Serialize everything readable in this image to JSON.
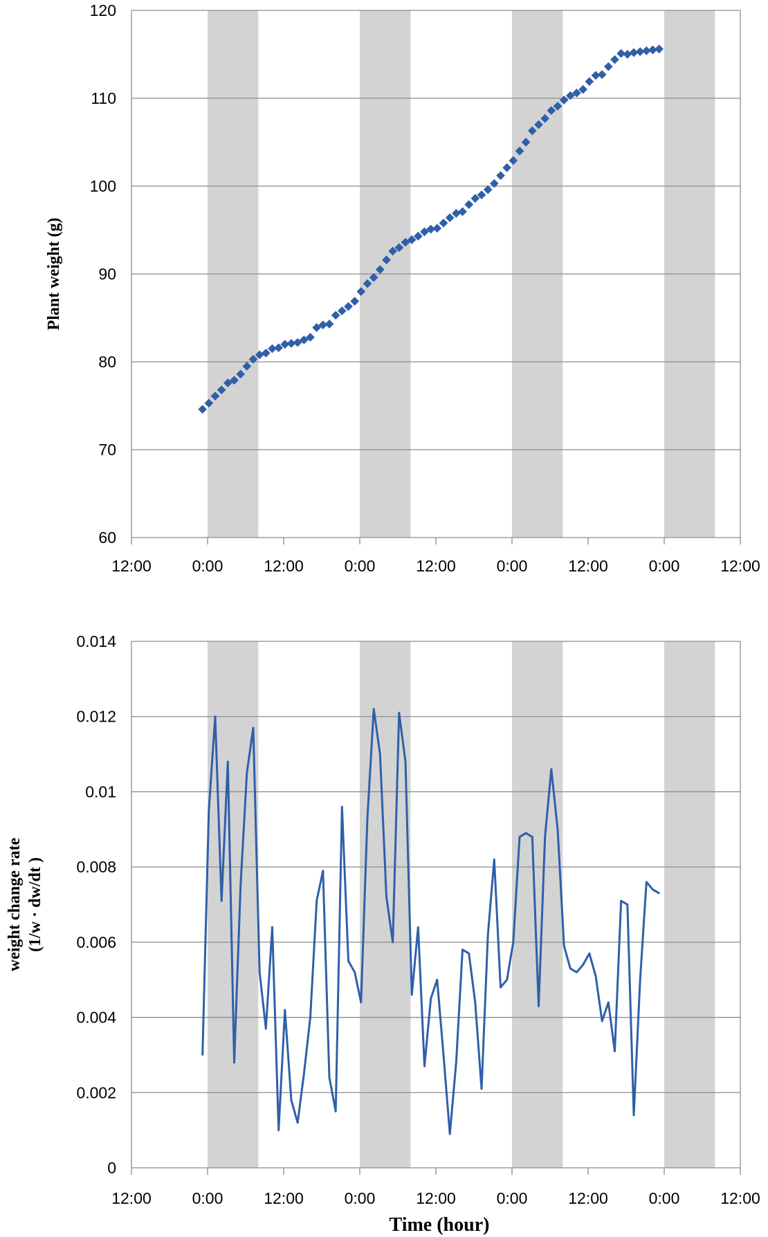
{
  "chart_data": [
    {
      "type": "scatter",
      "ylabel": "Plant weight (g)",
      "ylim": [
        60,
        120
      ],
      "yticks": [
        "60",
        "70",
        "80",
        "90",
        "100",
        "110",
        "120"
      ],
      "xlim_hours": [
        -12,
        84
      ],
      "xticks": [
        "12:00",
        "0:00",
        "12:00",
        "0:00",
        "12:00",
        "0:00",
        "12:00",
        "0:00",
        "12:00"
      ],
      "grid": true,
      "dark_periods_hours": [
        [
          0,
          8
        ],
        [
          24,
          32
        ],
        [
          48,
          56
        ],
        [
          72,
          80
        ]
      ],
      "colors": {
        "series": "#2f5fa8",
        "dark_period": "#d3d3d3",
        "grid": "#8c8c8c"
      },
      "series": [
        {
          "x_hours": [
            -0.8,
            0.2,
            1.2,
            2.2,
            3.2,
            4.2,
            5.2,
            6.2,
            7.2,
            8.2,
            9.2,
            10.2,
            11.2,
            12.2,
            13.2,
            14.2,
            15.2,
            16.2,
            17.2,
            18.2,
            19.2,
            20.2,
            21.2,
            22.2,
            23.2,
            24.2,
            25.2,
            26.2,
            27.2,
            28.2,
            29.2,
            30.2,
            31.2,
            32.2,
            33.2,
            34.2,
            35.2,
            36.2,
            37.2,
            38.2,
            39.2,
            40.2,
            41.2,
            42.2,
            43.2,
            44.2,
            45.2,
            46.2,
            47.2,
            48.2,
            49.2,
            50.2,
            51.2,
            52.2,
            53.2,
            54.2,
            55.2,
            56.2,
            57.2,
            58.2,
            59.2,
            60.2,
            61.2,
            62.2,
            63.2,
            64.2,
            65.2,
            66.2,
            67.2,
            68.2,
            69.2,
            70.2,
            71.2
          ],
          "y": [
            74.6,
            75.3,
            76.1,
            76.8,
            77.6,
            77.9,
            78.6,
            79.5,
            80.3,
            80.8,
            81.0,
            81.5,
            81.6,
            82.0,
            82.1,
            82.2,
            82.5,
            82.8,
            83.9,
            84.2,
            84.3,
            85.3,
            85.8,
            86.3,
            86.9,
            88.0,
            88.9,
            89.6,
            90.5,
            91.6,
            92.6,
            93.0,
            93.6,
            93.9,
            94.3,
            94.8,
            95.1,
            95.2,
            95.8,
            96.4,
            96.9,
            97.1,
            97.9,
            98.6,
            99.0,
            99.6,
            100.3,
            101.2,
            102.1,
            102.9,
            104.0,
            105.0,
            106.3,
            107.0,
            107.7,
            108.6,
            109.1,
            109.8,
            110.3,
            110.6,
            111.0,
            111.9,
            112.6,
            112.7,
            113.6,
            114.4,
            115.1,
            115.0,
            115.2,
            115.3,
            115.4,
            115.5,
            115.6
          ]
        }
      ]
    },
    {
      "type": "line",
      "ylabel": "weight change rate",
      "ylabel2": "(1/w · dw/dt )",
      "ylim": [
        0,
        0.014
      ],
      "yticks": [
        "0",
        "0.002",
        "0.004",
        "0.006",
        "0.008",
        "0.01",
        "0.012",
        "0.014"
      ],
      "xlim_hours": [
        -12,
        84
      ],
      "xticks": [
        "12:00",
        "0:00",
        "12:00",
        "0:00",
        "12:00",
        "0:00",
        "12:00",
        "0:00",
        "12:00"
      ],
      "xlabel": "Time (hour)",
      "grid": true,
      "dark_periods_hours": [
        [
          0,
          8
        ],
        [
          24,
          32
        ],
        [
          48,
          56
        ],
        [
          72,
          80
        ]
      ],
      "colors": {
        "series": "#2f5fa8",
        "dark_period": "#d3d3d3",
        "grid": "#8c8c8c"
      },
      "series": [
        {
          "x_hours": [
            -0.8,
            0.2,
            1.2,
            2.2,
            3.2,
            4.2,
            5.2,
            6.2,
            7.2,
            8.2,
            9.2,
            10.2,
            11.2,
            12.2,
            13.2,
            14.2,
            15.2,
            16.2,
            17.2,
            18.2,
            19.2,
            20.2,
            21.2,
            22.2,
            23.2,
            24.2,
            25.2,
            26.2,
            27.2,
            28.2,
            29.2,
            30.2,
            31.2,
            32.2,
            33.2,
            34.2,
            35.2,
            36.2,
            37.2,
            38.2,
            39.2,
            40.2,
            41.2,
            42.2,
            43.2,
            44.2,
            45.2,
            46.2,
            47.2,
            48.2,
            49.2,
            50.2,
            51.2,
            52.2,
            53.2,
            54.2,
            55.2,
            56.2,
            57.2,
            58.2,
            59.2,
            60.2,
            61.2,
            62.2,
            63.2,
            64.2,
            65.2,
            66.2,
            67.2,
            68.2,
            69.2,
            70.2,
            71.2
          ],
          "y": [
            0.003,
            0.0095,
            0.012,
            0.0071,
            0.0108,
            0.0028,
            0.0075,
            0.0105,
            0.0117,
            0.0052,
            0.0037,
            0.0064,
            0.001,
            0.0042,
            0.0018,
            0.0012,
            0.0025,
            0.004,
            0.0071,
            0.0079,
            0.0024,
            0.0015,
            0.0096,
            0.0055,
            0.0052,
            0.0044,
            0.0093,
            0.0122,
            0.011,
            0.0072,
            0.006,
            0.0121,
            0.0108,
            0.0046,
            0.0064,
            0.0027,
            0.0045,
            0.005,
            0.003,
            0.0009,
            0.0028,
            0.0058,
            0.0057,
            0.0044,
            0.0021,
            0.0062,
            0.0082,
            0.0048,
            0.005,
            0.006,
            0.0088,
            0.0089,
            0.0088,
            0.0043,
            0.0088,
            0.0106,
            0.009,
            0.0059,
            0.0053,
            0.0052,
            0.0054,
            0.0057,
            0.0051,
            0.0039,
            0.0044,
            0.0031,
            0.0071,
            0.007,
            0.0014,
            0.005,
            0.0076,
            0.0074,
            0.0073
          ]
        }
      ]
    }
  ]
}
